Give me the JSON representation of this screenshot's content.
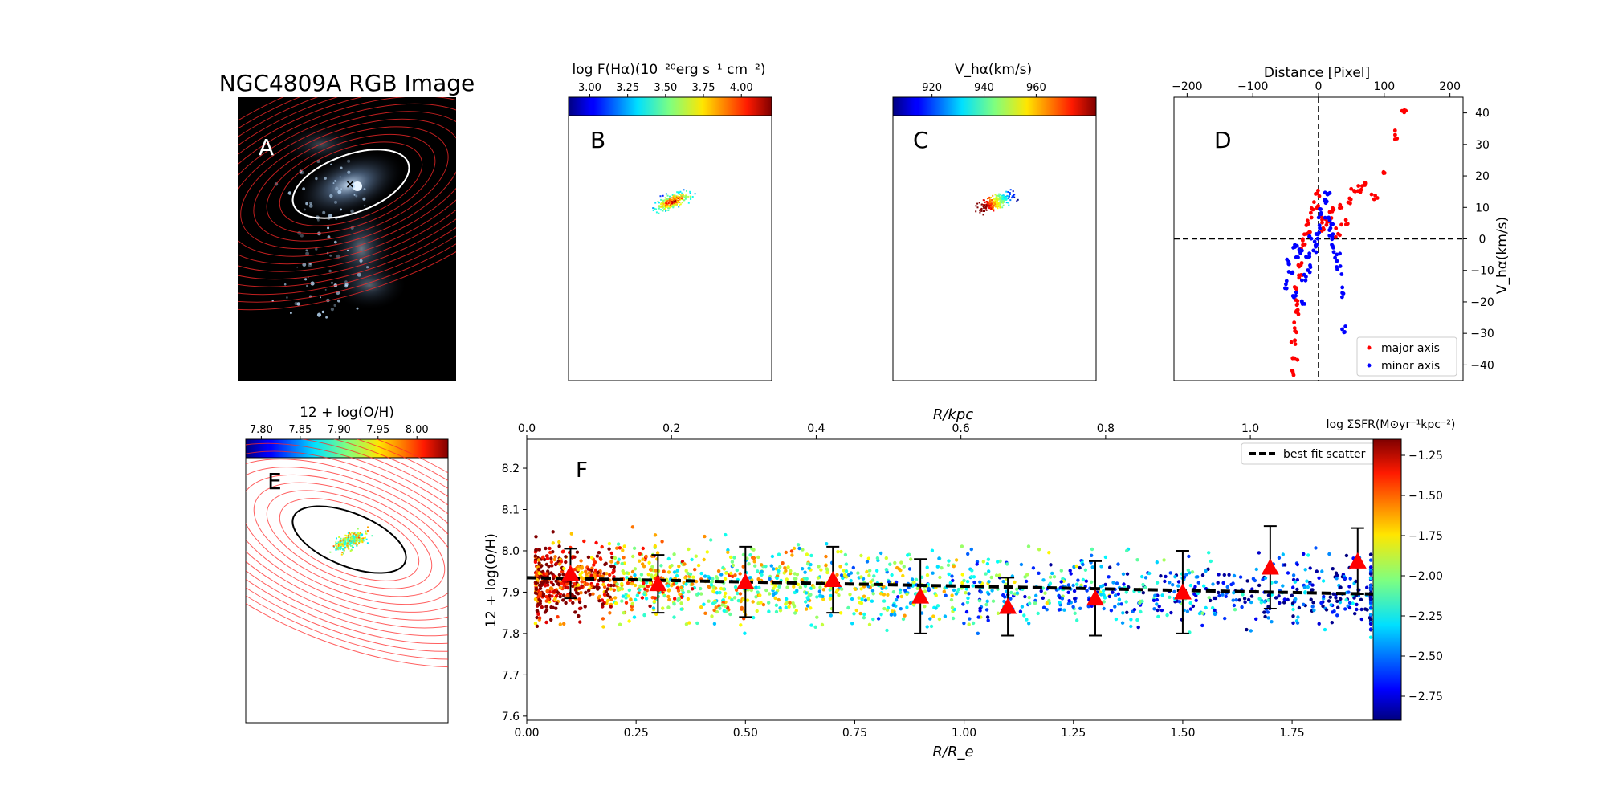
{
  "panels": {
    "A": {
      "letter": "A",
      "title": "NGC4809A RGB Image"
    },
    "B": {
      "letter": "B",
      "colorbar_label": "log F(Hα)(10⁻²⁰erg s⁻¹ cm⁻²)",
      "colorbar_ticks": [
        "3.00",
        "3.25",
        "3.50",
        "3.75",
        "4.00"
      ],
      "colorbar_range": [
        2.86,
        4.2
      ]
    },
    "C": {
      "letter": "C",
      "colorbar_label": "V_hα(km/s)",
      "colorbar_ticks": [
        "920",
        "940",
        "960"
      ],
      "colorbar_range": [
        905,
        983
      ]
    },
    "D": {
      "letter": "D",
      "xlabel": "Distance [Pixel]",
      "ylabel": "V_hα(km/s)"
    },
    "E": {
      "letter": "E",
      "colorbar_label": "12 + log(O/H)",
      "colorbar_ticks": [
        "7.80",
        "7.85",
        "7.90",
        "7.95",
        "8.00"
      ],
      "colorbar_range": [
        7.78,
        8.04
      ]
    },
    "F": {
      "letter": "F",
      "colorbar_label": "log ΣSFR(M⊙yr⁻¹kpc⁻²)",
      "colorbar_ticks": [
        "-1.25",
        "-1.50",
        "-1.75",
        "-2.00",
        "-2.25",
        "-2.50",
        "-2.75"
      ]
    }
  },
  "chart_data": [
    {
      "type": "scatter",
      "panel": "D",
      "xlabel": "Distance [Pixel]",
      "ylabel": "V_hα(km/s)",
      "xlim": [
        -220,
        220
      ],
      "ylim": [
        -45,
        45
      ],
      "xticks": [
        -200,
        -100,
        0,
        100,
        200
      ],
      "yticks": [
        -40,
        -30,
        -20,
        -10,
        0,
        10,
        20,
        30,
        40
      ],
      "x_axis_position": "top",
      "y_axis_position": "right",
      "reference_lines": {
        "x": 0,
        "y": 0
      },
      "legend": {
        "placement": "lower-right",
        "entries": [
          "major axis",
          "minor axis"
        ]
      },
      "series": [
        {
          "name": "major axis",
          "color": "#ff0000",
          "points": [
            [
              -40,
              -42
            ],
            [
              -38,
              -38
            ],
            [
              -37,
              -33
            ],
            [
              -36,
              -28
            ],
            [
              -34,
              -24
            ],
            [
              -33,
              -20
            ],
            [
              -32,
              -16
            ],
            [
              -30,
              -12
            ],
            [
              -28,
              -8
            ],
            [
              -25,
              -4
            ],
            [
              -22,
              -1
            ],
            [
              -18,
              2
            ],
            [
              -14,
              5
            ],
            [
              -10,
              8
            ],
            [
              -6,
              11
            ],
            [
              -2,
              14
            ],
            [
              3,
              6
            ],
            [
              8,
              3
            ],
            [
              14,
              6
            ],
            [
              20,
              9
            ],
            [
              26,
              2
            ],
            [
              33,
              10
            ],
            [
              40,
              5
            ],
            [
              48,
              12
            ],
            [
              56,
              15
            ],
            [
              64,
              16
            ],
            [
              72,
              17
            ],
            [
              85,
              14
            ],
            [
              100,
              21
            ],
            [
              118,
              33
            ],
            [
              130,
              41
            ]
          ]
        },
        {
          "name": "minor axis",
          "color": "#0000ff",
          "points": [
            [
              -50,
              -15
            ],
            [
              -46,
              -8
            ],
            [
              -42,
              -11
            ],
            [
              -38,
              -18
            ],
            [
              -35,
              -2
            ],
            [
              -32,
              -6
            ],
            [
              -28,
              -4
            ],
            [
              -25,
              -20
            ],
            [
              -22,
              -12
            ],
            [
              -18,
              -6
            ],
            [
              -14,
              -9
            ],
            [
              -10,
              0
            ],
            [
              -6,
              -3
            ],
            [
              -3,
              -1
            ],
            [
              0,
              2
            ],
            [
              3,
              5
            ],
            [
              6,
              9
            ],
            [
              9,
              12
            ],
            [
              12,
              15
            ],
            [
              14,
              7
            ],
            [
              17,
              4
            ],
            [
              20,
              1
            ],
            [
              24,
              -3
            ],
            [
              27,
              -6
            ],
            [
              30,
              -10
            ],
            [
              34,
              -17
            ],
            [
              38,
              -29
            ]
          ]
        }
      ]
    },
    {
      "type": "scatter",
      "panel": "F",
      "xlabel": "R/R_e",
      "x2label": "R/kpc",
      "ylabel": "12 + log(O/H)",
      "xlim": [
        0.0,
        1.95
      ],
      "ylim": [
        7.59,
        8.27
      ],
      "xticks": [
        0.0,
        0.25,
        0.5,
        0.75,
        1.0,
        1.25,
        1.5,
        1.75
      ],
      "x2ticks": [
        0.0,
        0.2,
        0.4,
        0.6,
        0.8,
        1.0
      ],
      "yticks": [
        7.6,
        7.7,
        7.8,
        7.9,
        8.0,
        8.1,
        8.2
      ],
      "color_scale": {
        "label": "log ΣSFR(M⊙yr⁻¹kpc⁻²)",
        "range": [
          -2.9,
          -1.15
        ],
        "ticks": [
          -1.25,
          -1.5,
          -1.75,
          -2.0,
          -2.25,
          -2.5,
          -2.75
        ]
      },
      "binned_medians": {
        "marker": "triangle",
        "color": "#ff0000",
        "x": [
          0.1,
          0.3,
          0.5,
          0.7,
          0.9,
          1.1,
          1.3,
          1.5,
          1.7,
          1.9
        ],
        "y": [
          7.945,
          7.92,
          7.925,
          7.93,
          7.89,
          7.865,
          7.885,
          7.9,
          7.96,
          7.975
        ],
        "err": [
          0.06,
          0.07,
          0.085,
          0.08,
          0.09,
          0.07,
          0.09,
          0.1,
          0.1,
          0.08
        ]
      },
      "best_fit": {
        "name": "best fit scatter",
        "style": "dashed",
        "color": "#000000",
        "x": [
          0.0,
          1.95
        ],
        "y": [
          7.935,
          7.895
        ]
      },
      "legend": {
        "placement": "top-right",
        "entries": [
          "best fit scatter"
        ]
      }
    }
  ]
}
